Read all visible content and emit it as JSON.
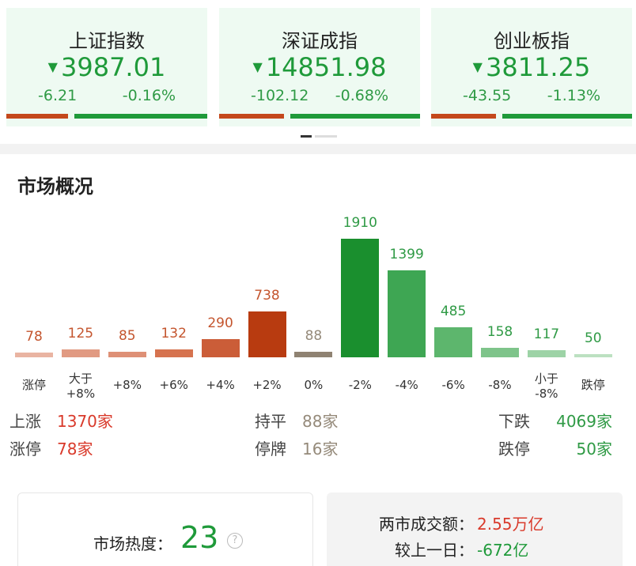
{
  "indices": [
    {
      "name": "上证指数",
      "price": "3987.01",
      "change": "-6.21",
      "pct": "-0.16%"
    },
    {
      "name": "深证成指",
      "price": "14851.98",
      "change": "-102.12",
      "pct": "-0.68%"
    },
    {
      "name": "创业板指",
      "price": "3811.25",
      "change": "-43.55",
      "pct": "-1.13%"
    }
  ],
  "market": {
    "title": "市场概况",
    "chart": {
      "type": "bar",
      "categories": [
        "涨停",
        "大于\n+8%",
        "+8%",
        "+6%",
        "+4%",
        "+2%",
        "0%",
        "-2%",
        "-4%",
        "-6%",
        "-8%",
        "小于\n-8%",
        "跌停"
      ],
      "values": [
        78,
        125,
        85,
        132,
        290,
        738,
        88,
        1910,
        1399,
        485,
        158,
        117,
        50
      ],
      "colors": [
        "#e9b4a2",
        "#e19a82",
        "#de9076",
        "#d6734f",
        "#cb5d38",
        "#b83b10",
        "#8f8272",
        "#1a8f2e",
        "#3ea653",
        "#5db66d",
        "#7ec48a",
        "#9dd3a6",
        "#bce1c1"
      ],
      "label_colors": [
        "#c4552e",
        "#c4552e",
        "#c4552e",
        "#c4552e",
        "#c4552e",
        "#c4552e",
        "#958a7a",
        "#2f9a45",
        "#2f9a45",
        "#2f9a45",
        "#2f9a45",
        "#2f9a45",
        "#2f9a45"
      ]
    },
    "stats": [
      {
        "label": "上涨",
        "value": "1370家"
      },
      {
        "label": "持平",
        "value": "88家"
      },
      {
        "label": "下跌",
        "value": "4069家"
      },
      {
        "label": "涨停",
        "value": "78家"
      },
      {
        "label": "停牌",
        "value": "16家"
      },
      {
        "label": "跌停",
        "value": "50家"
      }
    ]
  },
  "heat": {
    "label": "市场热度：",
    "value": "23"
  },
  "turnover": {
    "label": "两市成交额：",
    "value": "2.55万亿",
    "diff_label": "较上一日：",
    "diff_value": "-672亿"
  }
}
